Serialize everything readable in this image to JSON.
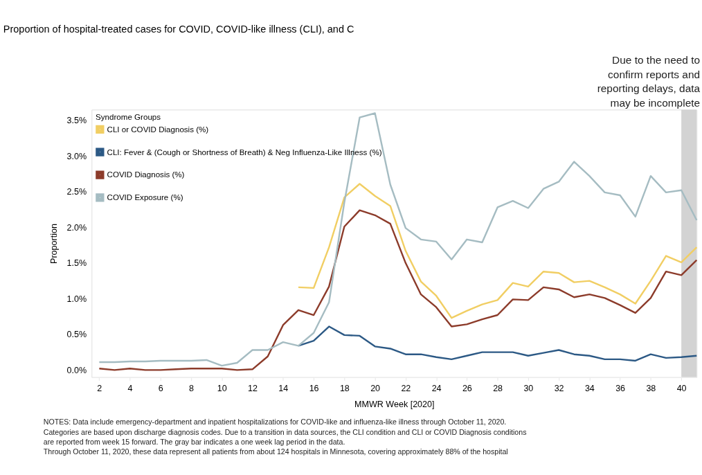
{
  "chart_data": {
    "type": "line",
    "title": "Proportion of hospital-treated cases for COVID, COVID-like illness (CLI), and C",
    "xlabel": "MMWR Week [2020]",
    "ylabel": "Proportion",
    "legend_title": "Syndrome Groups",
    "legend": "top left",
    "grid": false,
    "line_style": "solid",
    "marker": "none",
    "xlim": [
      1.5,
      41
    ],
    "xticks": [
      2,
      4,
      6,
      8,
      10,
      12,
      14,
      16,
      18,
      20,
      22,
      24,
      26,
      28,
      30,
      32,
      34,
      36,
      38,
      40
    ],
    "ylim": [
      -0.1,
      3.65
    ],
    "yticks": [
      {
        "value": 0,
        "label": "0.0%"
      },
      {
        "value": 0.5,
        "label": "0.5%"
      },
      {
        "value": 1,
        "label": "1.0%"
      },
      {
        "value": 1.5,
        "label": "1.5%"
      },
      {
        "value": 2,
        "label": "2.0%"
      },
      {
        "value": 2.5,
        "label": "2.5%"
      },
      {
        "value": 3,
        "label": "3.0%"
      },
      {
        "value": 3.5,
        "label": "3.5%"
      }
    ],
    "series": [
      {
        "name": "CLI or COVID Diagnosis (%)",
        "color": "#f1ce63",
        "x": [
          15,
          16,
          17,
          18,
          19,
          20,
          21,
          22,
          23,
          24,
          25,
          26,
          27,
          28,
          29,
          30,
          31,
          32,
          33,
          34,
          35,
          36,
          37,
          38,
          39,
          40,
          41
        ],
        "values": [
          1.16,
          1.15,
          1.72,
          2.42,
          2.61,
          2.44,
          2.3,
          1.67,
          1.24,
          1.04,
          0.73,
          0.83,
          0.92,
          0.98,
          1.22,
          1.17,
          1.38,
          1.36,
          1.23,
          1.25,
          1.16,
          1.06,
          0.93,
          1.25,
          1.6,
          1.51,
          1.72
        ]
      },
      {
        "name": "CLI: Fever & (Cough or Shortness of Breath) & Neg Influenza-Like Illness (%)",
        "color": "#2c5985",
        "x": [
          15,
          16,
          17,
          18,
          19,
          20,
          21,
          22,
          23,
          24,
          25,
          26,
          27,
          28,
          29,
          30,
          31,
          32,
          33,
          34,
          35,
          36,
          37,
          38,
          39,
          40,
          41
        ],
        "values": [
          0.34,
          0.41,
          0.61,
          0.49,
          0.48,
          0.33,
          0.3,
          0.22,
          0.22,
          0.18,
          0.15,
          0.2,
          0.25,
          0.25,
          0.25,
          0.2,
          0.24,
          0.28,
          0.22,
          0.2,
          0.15,
          0.15,
          0.13,
          0.22,
          0.17,
          0.18,
          0.2
        ]
      },
      {
        "name": "COVID Diagnosis (%)",
        "color": "#8c3b2a",
        "x": [
          2,
          3,
          4,
          5,
          6,
          7,
          8,
          9,
          10,
          11,
          12,
          13,
          14,
          15,
          16,
          17,
          18,
          19,
          20,
          21,
          22,
          23,
          24,
          25,
          26,
          27,
          28,
          29,
          30,
          31,
          32,
          33,
          34,
          35,
          36,
          37,
          38,
          39,
          40,
          41
        ],
        "values": [
          0.02,
          0.0,
          0.02,
          0.0,
          0.0,
          0.01,
          0.02,
          0.02,
          0.02,
          0.0,
          0.01,
          0.19,
          0.63,
          0.84,
          0.77,
          1.17,
          2.01,
          2.24,
          2.17,
          2.05,
          1.5,
          1.06,
          0.88,
          0.61,
          0.64,
          0.71,
          0.77,
          0.99,
          0.98,
          1.16,
          1.13,
          1.02,
          1.06,
          1.01,
          0.91,
          0.8,
          1.01,
          1.38,
          1.33,
          1.54
        ]
      },
      {
        "name": "COVID Exposure (%)",
        "color": "#a5bcc2",
        "x": [
          2,
          3,
          4,
          5,
          6,
          7,
          8,
          9,
          10,
          11,
          12,
          13,
          14,
          15,
          16,
          17,
          18,
          19,
          20,
          21,
          22,
          23,
          24,
          25,
          26,
          27,
          28,
          29,
          30,
          31,
          32,
          33,
          34,
          35,
          36,
          37,
          38,
          39,
          40,
          41
        ],
        "values": [
          0.11,
          0.11,
          0.12,
          0.12,
          0.13,
          0.13,
          0.13,
          0.14,
          0.06,
          0.1,
          0.28,
          0.28,
          0.39,
          0.34,
          0.52,
          0.95,
          2.35,
          3.54,
          3.6,
          2.6,
          1.99,
          1.83,
          1.8,
          1.55,
          1.83,
          1.79,
          2.28,
          2.37,
          2.27,
          2.54,
          2.64,
          2.92,
          2.72,
          2.49,
          2.45,
          2.15,
          2.72,
          2.49,
          2.52,
          2.1
        ]
      }
    ],
    "bands": [
      {
        "axis": "x",
        "from": 40,
        "to": 41,
        "color": "#d3d3d3"
      }
    ],
    "annotations": [
      "Due to the need to\nconfirm reports and\nreporting delays, data\nmay be incomplete",
      "NOTES: Data include emergency-department and inpatient hospitalizations for COVID-like and influenza-like illness through October 11, 2020.\nCategories are based upon discharge diagnosis codes. Due to a transition in data sources, the CLI condition and CLI or COVID Diagnosis conditions\nare reported from week 15 forward. The gray bar indicates a one week lag period in the data.\nThrough October 11, 2020, these data represent all patients from about 124 hospitals in Minnesota, covering approximately 88% of the hospital"
    ]
  }
}
